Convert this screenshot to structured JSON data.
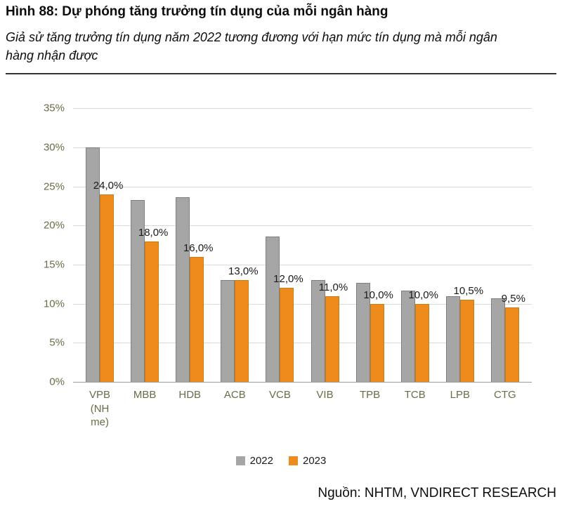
{
  "header": {
    "title": "Hình 88: Dự phóng tăng trưởng tín dụng của mỗi ngân hàng",
    "subtitle": "Giả sử tăng trưởng tín dụng năm 2022 tương đương với hạn mức tín dụng mà mỗi ngân hàng nhận được"
  },
  "footer": {
    "source": "Nguồn: NHTM, VNDIRECT RESEARCH"
  },
  "chart_data": {
    "type": "bar",
    "title": "Dự phóng tăng trưởng tín dụng của mỗi ngân hàng",
    "categories": [
      "VPB (NH me)",
      "MBB",
      "HDB",
      "ACB",
      "VCB",
      "VIB",
      "TPB",
      "TCB",
      "LPB",
      "CTG"
    ],
    "series": [
      {
        "name": "2022",
        "color": "#a6a6a6",
        "border_color": "#7f7f7f",
        "values": [
          30.0,
          23.3,
          23.6,
          13.0,
          18.6,
          13.0,
          12.7,
          11.7,
          11.0,
          10.7
        ]
      },
      {
        "name": "2023",
        "color": "#ed8b1c",
        "border_color": "#c77d14",
        "values": [
          24.0,
          18.0,
          16.0,
          13.0,
          12.0,
          11.0,
          10.0,
          10.0,
          10.5,
          9.5
        ]
      }
    ],
    "data_labels": [
      "24,0%",
      "18,0%",
      "16,0%",
      "13,0%",
      "12,0%",
      "11,0%",
      "10,0%",
      "10,0%",
      "10,5%",
      "9,5%"
    ],
    "data_label_series": "2023",
    "xlabel": "",
    "ylabel": "",
    "ylim": [
      0,
      35
    ],
    "ytick_step": 5,
    "ytick_labels": [
      "0%",
      "5%",
      "10%",
      "15%",
      "20%",
      "25%",
      "30%",
      "35%"
    ],
    "grid": true,
    "legend_position": "bottom",
    "axis_label_color": "#6b6b47",
    "gridline_color": "#d9d9d9"
  }
}
